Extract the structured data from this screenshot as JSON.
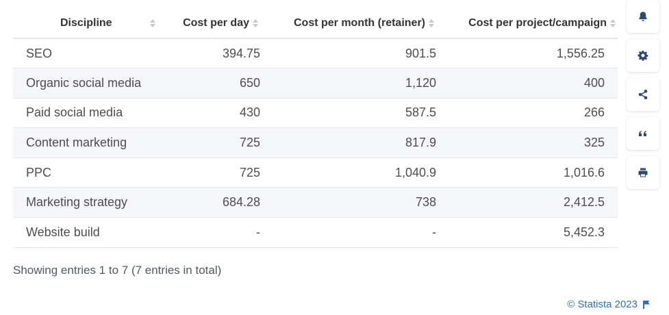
{
  "chart_data": {
    "type": "table",
    "columns": [
      "Discipline",
      "Cost per day",
      "Cost per month (retainer)",
      "Cost per project/campaign"
    ],
    "rows": [
      [
        "SEO",
        "394.75",
        "901.5",
        "1,556.25"
      ],
      [
        "Organic social media",
        "650",
        "1,120",
        "400"
      ],
      [
        "Paid social media",
        "430",
        "587.5",
        "266"
      ],
      [
        "Content marketing",
        "725",
        "817.9",
        "325"
      ],
      [
        "PPC",
        "725",
        "1,040.9",
        "1,016.6"
      ],
      [
        "Marketing strategy",
        "684.28",
        "738",
        "2,412.5"
      ],
      [
        "Website build",
        "-",
        "-",
        "5,452.3"
      ]
    ]
  },
  "footer": {
    "entries_text": "Showing entries 1 to 7 (7 entries in total)",
    "credit": "© Statista 2023"
  },
  "toolbar": {
    "icons": [
      "bell-icon",
      "gear-icon",
      "share-icon",
      "quote-icon",
      "print-icon"
    ]
  },
  "colors": {
    "stripe": "#f4f6f9",
    "border": "#e3e6ea",
    "link": "#2f6fb5",
    "icon": "#2e4a6b"
  }
}
